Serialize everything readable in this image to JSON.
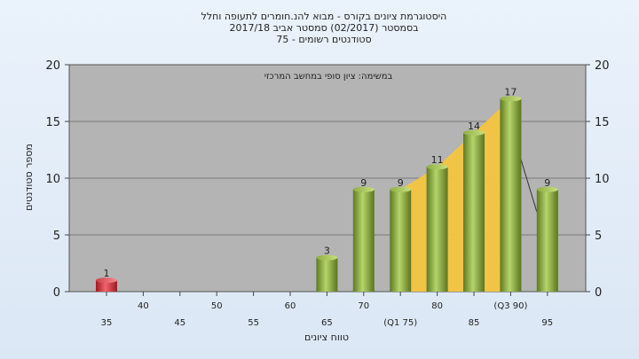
{
  "chart_data": {
    "type": "bar",
    "title_lines": [
      "היסטוגרמת ציונים בקורס - מבוא להנ.חומרים לתעופה וחלל",
      "בסמסטר  (02/2017)  סמסטר אביב 2017/18",
      "סטודנטים רשומים - 75"
    ],
    "inner_caption": "במשימה: ציון סופי במחשב המרכזי",
    "ylabel": "מספר סטודנטים",
    "xlabel": "טווח ציונים",
    "ylim": [
      0,
      20
    ],
    "yticks": [
      0,
      5,
      10,
      15,
      20
    ],
    "categories": [
      "35",
      "40",
      "45",
      "50",
      "55",
      "60",
      "65",
      "70",
      "(Q1 75)",
      "80",
      "85",
      "(Q3 90)",
      "95"
    ],
    "values": [
      1,
      0,
      0,
      0,
      0,
      0,
      3,
      9,
      9,
      11,
      14,
      17,
      9
    ],
    "value_labels": [
      "1",
      "",
      "",
      "",
      "",
      "",
      "3",
      "9",
      "9",
      "11",
      "14",
      "17",
      "9"
    ],
    "quartile_area": {
      "from_index": 8,
      "to_index": 11,
      "color": "#f4c542"
    },
    "colors": {
      "highlight_bar": "#d9323a",
      "bar": "#8aab3e",
      "plot_background": "#b4b4b4",
      "page_background": "#e4eef9"
    },
    "highlight_index": 0,
    "grid": "horizontal"
  }
}
